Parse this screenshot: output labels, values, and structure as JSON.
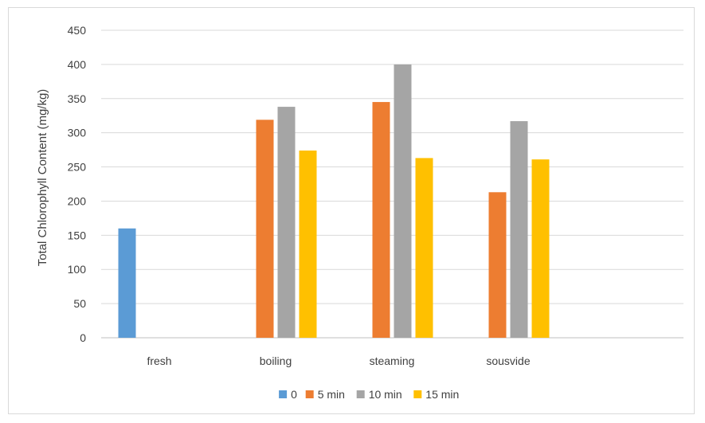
{
  "chart_data": {
    "type": "bar",
    "title": "",
    "xlabel": "",
    "ylabel": "Total Chlorophyll Content (mg/kg)",
    "ylim": [
      0,
      450
    ],
    "yticks": [
      0,
      50,
      100,
      150,
      200,
      250,
      300,
      350,
      400,
      450
    ],
    "grid": true,
    "legend_position": "bottom",
    "categories": [
      "fresh",
      "boiling",
      "steaming",
      "sousvide"
    ],
    "series": [
      {
        "name": "0",
        "color": "#5B9BD5",
        "values": [
          160,
          null,
          null,
          null
        ]
      },
      {
        "name": "5 min",
        "color": "#ED7D31",
        "values": [
          null,
          319,
          345,
          213
        ]
      },
      {
        "name": "10 min",
        "color": "#A5A5A5",
        "values": [
          null,
          338,
          400,
          317
        ]
      },
      {
        "name": "15 min",
        "color": "#FFC000",
        "values": [
          null,
          274,
          263,
          261
        ]
      }
    ]
  }
}
